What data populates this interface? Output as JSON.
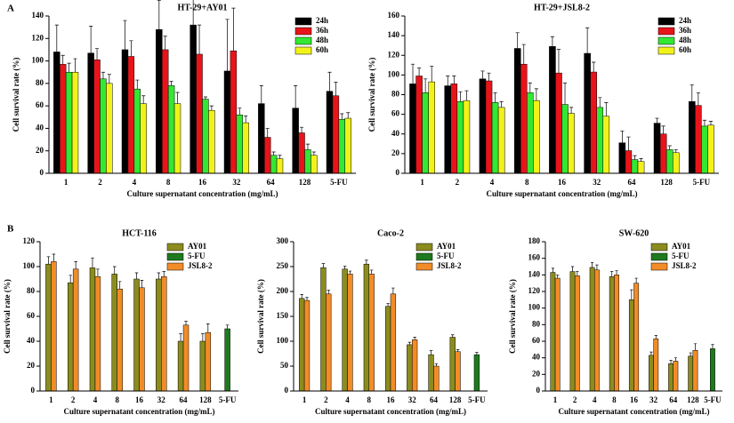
{
  "chart_data": [
    {
      "type": "bar",
      "panel_label": "A",
      "title": "HT-29+AY01",
      "x_label": "Culture supernatant concentration (mg/mL)",
      "y_label": "Cell survival rate (%)",
      "categories": [
        "1",
        "2",
        "4",
        "8",
        "16",
        "32",
        "64",
        "128",
        "5-FU"
      ],
      "ylim": [
        0,
        140
      ],
      "yticks": [
        0,
        20,
        40,
        60,
        80,
        100,
        120,
        140
      ],
      "legend": "upper right",
      "series": [
        {
          "name": "24h",
          "color": "#000000",
          "values": [
            108,
            107,
            110,
            128,
            132,
            91,
            62,
            58,
            73
          ],
          "errors": [
            24,
            24,
            26,
            26,
            46,
            46,
            16,
            20,
            17
          ]
        },
        {
          "name": "36h",
          "color": "#e8141a",
          "values": [
            97,
            101,
            104,
            110,
            106,
            109,
            32,
            36,
            69
          ],
          "errors": [
            8,
            10,
            14,
            12,
            26,
            38,
            8,
            5,
            12
          ]
        },
        {
          "name": "48h",
          "color": "#33e833",
          "values": [
            90,
            84,
            75,
            78,
            66,
            52,
            16,
            21,
            48
          ],
          "errors": [
            8,
            6,
            8,
            4,
            2,
            6,
            3,
            5,
            5
          ]
        },
        {
          "name": "60h",
          "color": "#f2f21a",
          "values": [
            90,
            80,
            62,
            62,
            56,
            45,
            13,
            16,
            49
          ],
          "errors": [
            12,
            8,
            7,
            10,
            4,
            6,
            3,
            3,
            5
          ]
        }
      ]
    },
    {
      "type": "bar",
      "title": "HT-29+JSL8-2",
      "x_label": "Culture supernatant concentration (mg/mL)",
      "y_label": "Cell survival rate (%)",
      "categories": [
        "1",
        "2",
        "4",
        "8",
        "16",
        "32",
        "64",
        "128",
        "5-FU"
      ],
      "ylim": [
        0,
        160
      ],
      "yticks": [
        0,
        20,
        40,
        60,
        80,
        100,
        120,
        140,
        160
      ],
      "legend": "upper right",
      "series": [
        {
          "name": "24h",
          "color": "#000000",
          "values": [
            91,
            89,
            96,
            127,
            129,
            122,
            31,
            51,
            73
          ],
          "errors": [
            20,
            10,
            8,
            16,
            10,
            26,
            12,
            5,
            17
          ]
        },
        {
          "name": "36h",
          "color": "#e8141a",
          "values": [
            99,
            91,
            94,
            111,
            102,
            103,
            23,
            40,
            69
          ],
          "errors": [
            8,
            8,
            8,
            20,
            24,
            10,
            14,
            8,
            13
          ]
        },
        {
          "name": "48h",
          "color": "#33e833",
          "values": [
            82,
            73,
            72,
            82,
            70,
            67,
            14,
            24,
            48
          ],
          "errors": [
            14,
            10,
            10,
            10,
            22,
            10,
            4,
            4,
            6
          ]
        },
        {
          "name": "60h",
          "color": "#f2f21a",
          "values": [
            93,
            74,
            67,
            74,
            61,
            58,
            12,
            21,
            49
          ],
          "errors": [
            16,
            10,
            6,
            12,
            6,
            14,
            3,
            3,
            4
          ]
        }
      ]
    },
    {
      "type": "bar",
      "panel_label": "B",
      "title": "HCT-116",
      "x_label": "Culture supernatant concentration (mg/mL)",
      "y_label": "Cell survival rate (%)",
      "categories": [
        "1",
        "2",
        "4",
        "8",
        "16",
        "32",
        "64",
        "128",
        "5-FU"
      ],
      "ylim": [
        0,
        120
      ],
      "yticks": [
        0,
        20,
        40,
        60,
        80,
        100,
        120
      ],
      "legend": "upper right",
      "series": [
        {
          "name": "AY01",
          "color": "#8c8c1e",
          "values": [
            102,
            87,
            99,
            94,
            90,
            90,
            40,
            40,
            null
          ],
          "errors": [
            6,
            6,
            8,
            6,
            5,
            5,
            6,
            6,
            null
          ]
        },
        {
          "name": "5-FU",
          "color": "#1e7a1e",
          "values": [
            null,
            null,
            null,
            null,
            null,
            null,
            null,
            null,
            50
          ],
          "errors": [
            null,
            null,
            null,
            null,
            null,
            null,
            null,
            null,
            3
          ]
        },
        {
          "name": "JSL8-2",
          "color": "#f28c28",
          "values": [
            104,
            98,
            92,
            82,
            83,
            92,
            53,
            47,
            null
          ],
          "errors": [
            6,
            6,
            6,
            6,
            6,
            4,
            3,
            7,
            null
          ]
        }
      ]
    },
    {
      "type": "bar",
      "title": "Caco-2",
      "x_label": "Culture supernatant concentration (mg/mL)",
      "y_label": "Cell survival rate (%)",
      "categories": [
        "1",
        "2",
        "4",
        "8",
        "16",
        "32",
        "64",
        "128",
        "5-FU"
      ],
      "ylim": [
        0,
        300
      ],
      "yticks": [
        0,
        50,
        100,
        150,
        200,
        250,
        300
      ],
      "legend": "upper right",
      "series": [
        {
          "name": "AY01",
          "color": "#8c8c1e",
          "values": [
            186,
            248,
            245,
            255,
            170,
            93,
            73,
            108,
            null
          ],
          "errors": [
            8,
            8,
            6,
            8,
            6,
            5,
            8,
            5,
            null
          ]
        },
        {
          "name": "5-FU",
          "color": "#1e7a1e",
          "values": [
            null,
            null,
            null,
            null,
            null,
            null,
            null,
            null,
            73
          ],
          "errors": [
            null,
            null,
            null,
            null,
            null,
            null,
            null,
            null,
            5
          ]
        },
        {
          "name": "JSL8-2",
          "color": "#f28c28",
          "values": [
            182,
            195,
            235,
            235,
            195,
            103,
            50,
            79,
            null
          ],
          "errors": [
            6,
            8,
            6,
            8,
            12,
            5,
            5,
            4,
            null
          ]
        }
      ]
    },
    {
      "type": "bar",
      "title": "SW-620",
      "x_label": "Culture supernatant concentration (mg/mL)",
      "y_label": "Cell survival rate (%)",
      "categories": [
        "1",
        "2",
        "4",
        "8",
        "16",
        "32",
        "64",
        "128",
        "5-FU"
      ],
      "ylim": [
        0,
        180
      ],
      "yticks": [
        0,
        20,
        40,
        60,
        80,
        100,
        120,
        140,
        160,
        180
      ],
      "legend": "upper right",
      "series": [
        {
          "name": "AY01",
          "color": "#8c8c1e",
          "values": [
            143,
            144,
            149,
            138,
            110,
            43,
            33,
            42,
            null
          ],
          "errors": [
            5,
            6,
            6,
            6,
            12,
            4,
            4,
            4,
            null
          ]
        },
        {
          "name": "5-FU",
          "color": "#1e7a1e",
          "values": [
            null,
            null,
            null,
            null,
            null,
            null,
            null,
            null,
            51
          ],
          "errors": [
            null,
            null,
            null,
            null,
            null,
            null,
            null,
            null,
            5
          ]
        },
        {
          "name": "JSL8-2",
          "color": "#f28c28",
          "values": [
            136,
            139,
            146,
            140,
            130,
            63,
            36,
            49,
            null
          ],
          "errors": [
            4,
            5,
            6,
            5,
            6,
            4,
            4,
            8,
            null
          ]
        }
      ]
    }
  ]
}
